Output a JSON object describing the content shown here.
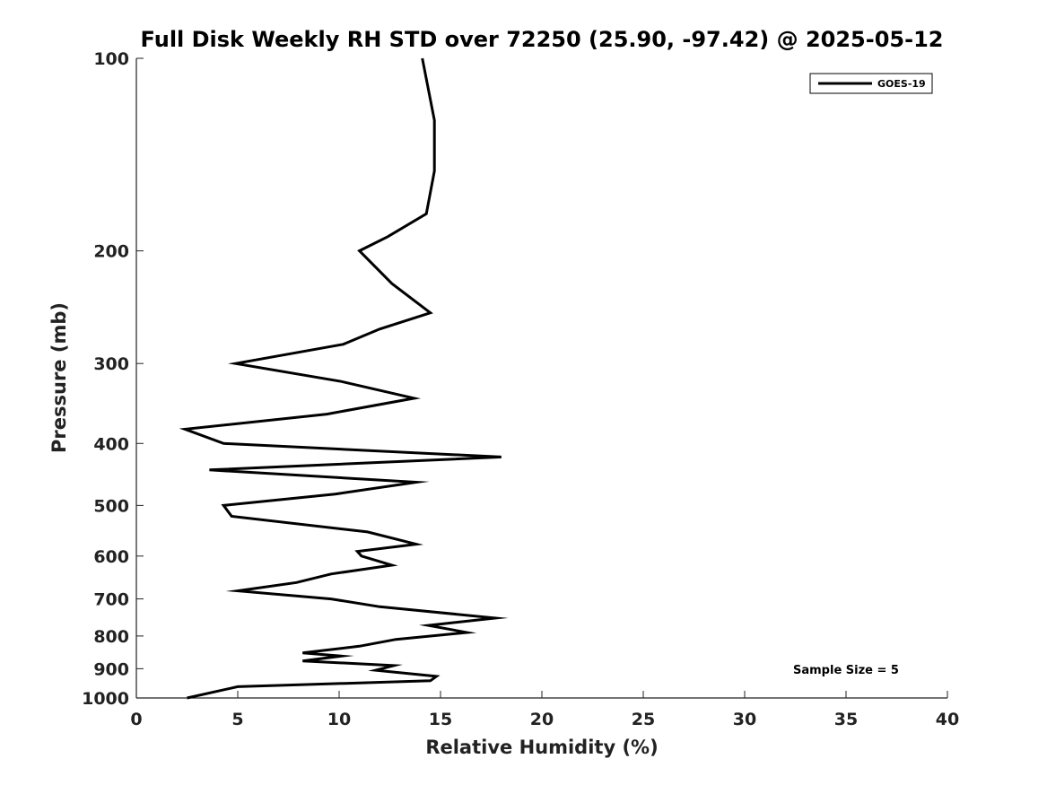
{
  "chart_data": {
    "type": "line",
    "title": "Full Disk Weekly RH STD over 72250 (25.90, -97.42) @ 2025-05-12",
    "xlabel": "Relative Humidity (%)",
    "ylabel": "Pressure (mb)",
    "xlim": [
      0,
      40
    ],
    "ylim": [
      100,
      1000
    ],
    "yscale": "log",
    "y_reversed": true,
    "x_ticks": [
      0,
      5,
      10,
      15,
      20,
      25,
      30,
      35,
      40
    ],
    "x_tick_labels": [
      "0",
      "5",
      "10",
      "15",
      "20",
      "25",
      "30",
      "35",
      "40"
    ],
    "y_ticks": [
      100,
      200,
      300,
      400,
      500,
      600,
      700,
      800,
      900,
      1000
    ],
    "y_tick_labels": [
      "100",
      "200",
      "300",
      "400",
      "500",
      "600",
      "700",
      "800",
      "900",
      "1000"
    ],
    "grid": false,
    "legend_position": "top-right",
    "annotation": "Sample Size = 5",
    "series": [
      {
        "name": "GOES-19",
        "color": "#000000",
        "points": [
          [
            14.1,
            100
          ],
          [
            14.7,
            125
          ],
          [
            14.7,
            150
          ],
          [
            14.3,
            175
          ],
          [
            12.4,
            190
          ],
          [
            11.0,
            200
          ],
          [
            12.6,
            225
          ],
          [
            14.5,
            250
          ],
          [
            12.0,
            265
          ],
          [
            10.2,
            280
          ],
          [
            4.9,
            300
          ],
          [
            10.1,
            320
          ],
          [
            13.7,
            340
          ],
          [
            9.4,
            360
          ],
          [
            2.4,
            380
          ],
          [
            4.3,
            400
          ],
          [
            18.0,
            420
          ],
          [
            3.6,
            440
          ],
          [
            13.8,
            460
          ],
          [
            9.8,
            480
          ],
          [
            4.3,
            500
          ],
          [
            4.7,
            520
          ],
          [
            11.4,
            550
          ],
          [
            13.8,
            575
          ],
          [
            10.9,
            590
          ],
          [
            11.1,
            600
          ],
          [
            12.6,
            620
          ],
          [
            9.6,
            640
          ],
          [
            7.9,
            660
          ],
          [
            5.0,
            680
          ],
          [
            9.6,
            700
          ],
          [
            12.0,
            720
          ],
          [
            17.7,
            750
          ],
          [
            14.4,
            770
          ],
          [
            16.3,
            790
          ],
          [
            12.8,
            810
          ],
          [
            11.0,
            830
          ],
          [
            8.2,
            850
          ],
          [
            10.1,
            860
          ],
          [
            8.2,
            875
          ],
          [
            12.7,
            890
          ],
          [
            11.8,
            905
          ],
          [
            14.8,
            925
          ],
          [
            14.5,
            940
          ],
          [
            5.0,
            960
          ],
          [
            2.5,
            1000
          ]
        ]
      }
    ]
  }
}
